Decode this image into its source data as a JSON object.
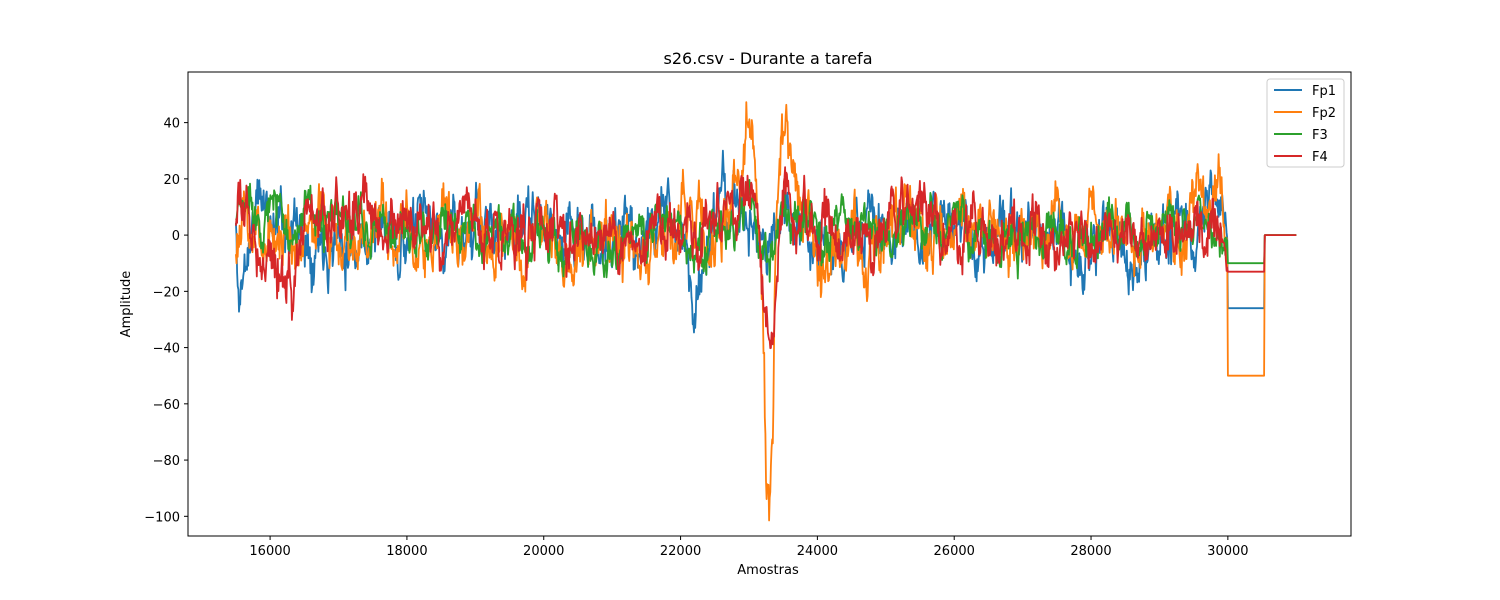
{
  "chart_data": {
    "type": "line",
    "title": "s26.csv - Durante a tarefa",
    "xlabel": "Amostras",
    "ylabel": "Amplitude",
    "xlim": [
      14800,
      31800
    ],
    "ylim": [
      -107,
      58
    ],
    "xticks": [
      16000,
      18000,
      20000,
      22000,
      24000,
      26000,
      28000,
      30000
    ],
    "yticks": [
      -100,
      -80,
      -60,
      -40,
      -20,
      0,
      20,
      40
    ],
    "xtick_labels": [
      "16000",
      "18000",
      "20000",
      "22000",
      "24000",
      "26000",
      "28000",
      "30000"
    ],
    "ytick_labels": [
      "−100",
      "−80",
      "−60",
      "−40",
      "−20",
      "0",
      "20",
      "40"
    ],
    "grid": false,
    "legend": "top-right",
    "series": [
      {
        "name": "Fp1",
        "color": "#1f77b4",
        "seed": 11,
        "amp": 7.5,
        "x": [
          15500,
          15530,
          15800,
          16500,
          18000,
          20000,
          21000,
          22000,
          22200,
          22400,
          22800,
          23200,
          23500,
          23900,
          24300,
          25000,
          27000,
          29000,
          29300,
          29700,
          29990,
          30000,
          30530,
          30540,
          31000
        ],
        "y": [
          3,
          -25,
          12,
          2,
          0,
          3,
          -2,
          6,
          -22,
          0,
          12,
          -8,
          8,
          5,
          -4,
          3,
          -2,
          -5,
          2,
          6,
          0,
          -26,
          -26,
          0,
          0
        ]
      },
      {
        "name": "Fp2",
        "color": "#ff7f0e",
        "seed": 23,
        "amp": 8.0,
        "x": [
          15500,
          16500,
          18000,
          20000,
          21500,
          22000,
          22700,
          22900,
          23000,
          23100,
          23200,
          23250,
          23300,
          23350,
          23400,
          23500,
          23600,
          23700,
          24200,
          25000,
          27000,
          29000,
          29500,
          29800,
          29990,
          30000,
          30530,
          30540,
          31000
        ],
        "y": [
          0,
          2,
          -3,
          3,
          -4,
          5,
          2,
          25,
          43,
          30,
          -20,
          -85,
          -97,
          -60,
          5,
          38,
          30,
          8,
          -10,
          3,
          -3,
          0,
          5,
          20,
          0,
          -50,
          -50,
          0,
          0
        ]
      },
      {
        "name": "F3",
        "color": "#2ca02c",
        "seed": 37,
        "amp": 6.0,
        "x": [
          15500,
          15700,
          16500,
          18000,
          20000,
          22000,
          22500,
          23000,
          23300,
          23500,
          24000,
          25000,
          27000,
          29000,
          29990,
          30000,
          30530,
          30540,
          31000
        ],
        "y": [
          5,
          12,
          3,
          2,
          -2,
          3,
          -3,
          10,
          -15,
          12,
          2,
          2,
          0,
          2,
          0,
          -10,
          -10,
          0,
          0
        ]
      },
      {
        "name": "F4",
        "color": "#d62728",
        "seed": 53,
        "amp": 7.0,
        "x": [
          15500,
          16300,
          16320,
          16500,
          17400,
          18000,
          20000,
          22000,
          22900,
          23100,
          23250,
          23350,
          23500,
          23700,
          24500,
          26000,
          28000,
          29000,
          29800,
          29990,
          30000,
          30530,
          30540,
          31000
        ],
        "y": [
          8,
          -12,
          -25,
          5,
          10,
          0,
          2,
          0,
          10,
          18,
          -30,
          -40,
          20,
          5,
          -5,
          2,
          -5,
          3,
          5,
          0,
          -13,
          -13,
          0,
          0
        ]
      }
    ]
  }
}
